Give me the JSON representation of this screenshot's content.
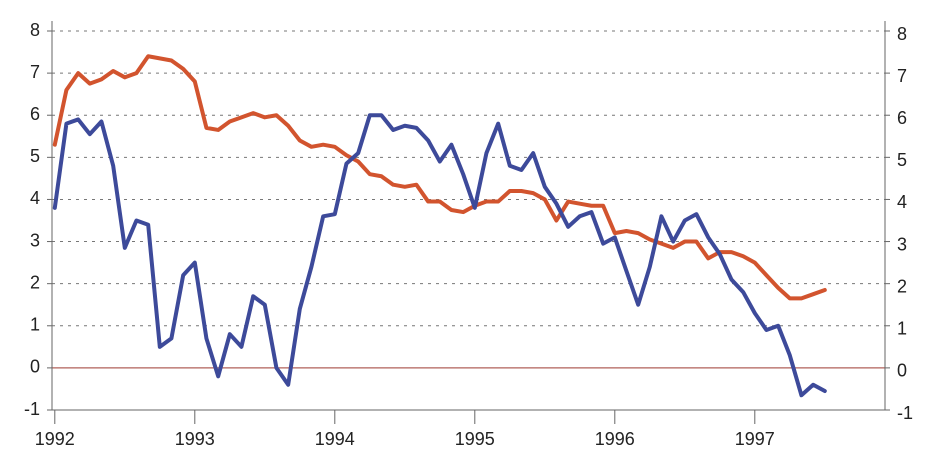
{
  "chart_data": {
    "type": "line",
    "x": [
      1992,
      1992.083,
      1992.167,
      1992.25,
      1992.333,
      1992.417,
      1992.5,
      1992.583,
      1992.667,
      1992.75,
      1992.833,
      1992.917,
      1993,
      1993.083,
      1993.167,
      1993.25,
      1993.333,
      1993.417,
      1993.5,
      1993.583,
      1993.667,
      1993.75,
      1993.833,
      1993.917,
      1994,
      1994.083,
      1994.167,
      1994.25,
      1994.333,
      1994.417,
      1994.5,
      1994.583,
      1994.667,
      1994.75,
      1994.833,
      1994.917,
      1995,
      1995.083,
      1995.167,
      1995.25,
      1995.333,
      1995.417,
      1995.5,
      1995.583,
      1995.667,
      1995.75,
      1995.833,
      1995.917,
      1996,
      1996.083,
      1996.167,
      1996.25,
      1996.333,
      1996.417,
      1996.5,
      1996.583,
      1996.667,
      1996.75,
      1996.833,
      1996.917,
      1997,
      1997.083,
      1997.167,
      1997.25,
      1997.333,
      1997.417,
      1997.5
    ],
    "series": [
      {
        "color": "#d2542e",
        "values": [
          5.3,
          6.6,
          7.0,
          6.75,
          6.85,
          7.05,
          6.9,
          7.0,
          7.4,
          7.35,
          7.3,
          7.1,
          6.8,
          5.7,
          5.65,
          5.85,
          5.95,
          6.05,
          5.95,
          6.0,
          5.75,
          5.4,
          5.25,
          5.3,
          5.25,
          5.05,
          4.9,
          4.6,
          4.55,
          4.35,
          4.3,
          4.35,
          3.95,
          3.95,
          3.75,
          3.7,
          3.85,
          3.95,
          3.95,
          4.2,
          4.2,
          4.15,
          4.0,
          3.5,
          3.95,
          3.9,
          3.85,
          3.85,
          3.2,
          3.25,
          3.2,
          3.05,
          2.95,
          2.85,
          3.0,
          3.0,
          2.6,
          2.75,
          2.75,
          2.65,
          2.5,
          2.2,
          1.9,
          1.65,
          1.65,
          1.75,
          1.85
        ]
      },
      {
        "color": "#3d4a9a",
        "values": [
          3.8,
          5.8,
          5.9,
          5.55,
          5.85,
          4.8,
          2.85,
          3.5,
          3.4,
          0.5,
          0.7,
          2.2,
          2.5,
          0.7,
          -0.2,
          0.8,
          0.5,
          1.7,
          1.5,
          0.0,
          -0.4,
          1.4,
          2.4,
          3.6,
          3.65,
          4.85,
          5.1,
          6.0,
          6.0,
          5.65,
          5.75,
          5.7,
          5.4,
          4.9,
          5.3,
          4.6,
          3.8,
          5.1,
          5.8,
          4.8,
          4.7,
          5.1,
          4.3,
          3.9,
          3.35,
          3.6,
          3.7,
          2.95,
          3.1,
          2.3,
          1.5,
          2.4,
          3.6,
          3.0,
          3.5,
          3.65,
          3.1,
          2.7,
          2.1,
          1.8,
          1.3,
          0.9,
          1.0,
          0.3,
          -0.65,
          -0.4,
          -0.55
        ]
      }
    ],
    "xlim": [
      1991.98,
      1997.93
    ],
    "xticks": [
      1992,
      1993,
      1994,
      1995,
      1996,
      1997
    ],
    "ylim": [
      -1,
      8
    ],
    "yticks": [
      -1,
      0,
      1,
      2,
      3,
      4,
      5,
      6,
      7,
      8
    ],
    "y2lim": [
      -1,
      8
    ],
    "y2ticks": [
      -1,
      0,
      1,
      2,
      3,
      4,
      5,
      6,
      7,
      8
    ],
    "grid": true
  }
}
